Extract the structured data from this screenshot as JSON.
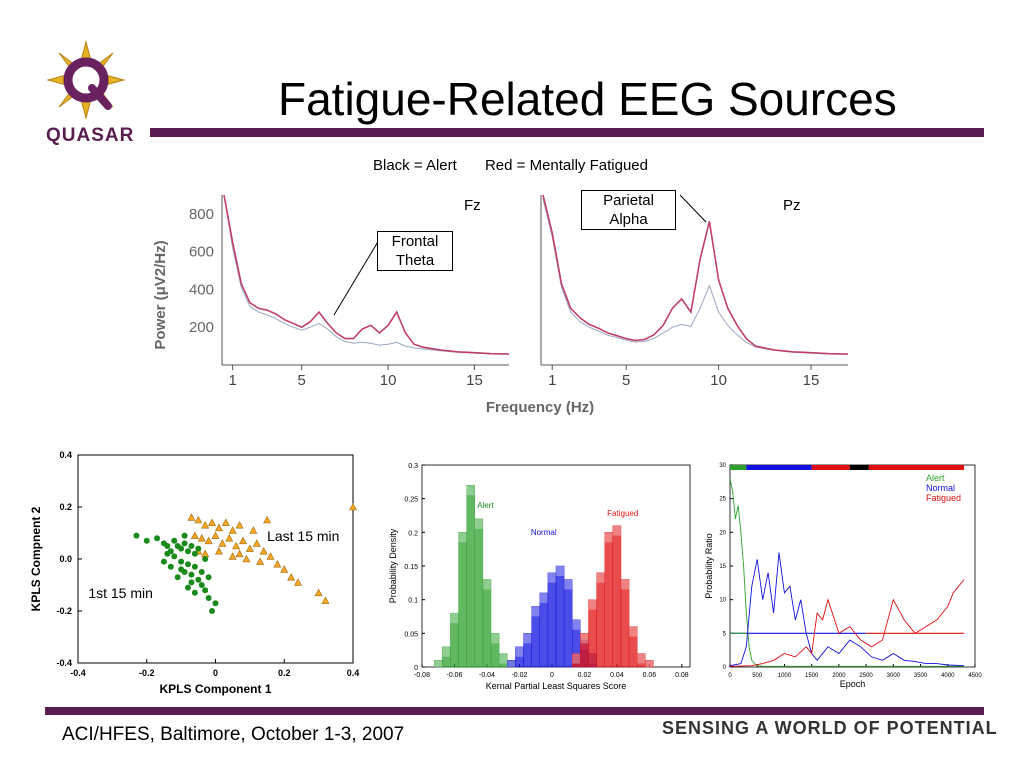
{
  "title": "Fatigue-Related EEG Sources",
  "logo": {
    "text": "QUASAR"
  },
  "legend_text": {
    "alert": "Black = Alert",
    "fatigued": "Red = Mentally Fatigued"
  },
  "callouts": {
    "frontal": [
      "Frontal",
      "Theta"
    ],
    "parietal": [
      "Parietal",
      "Alpha"
    ]
  },
  "footer": {
    "left": "ACI/HFES, Baltimore, October 1-3, 2007",
    "right": "SENSING A WORLD OF POTENTIAL"
  },
  "colors": {
    "accent": "#5a1d50",
    "alert": "#333333",
    "fatigued": "#c0406a",
    "green": "#2ca02c",
    "blue": "#1010e0",
    "red": "#e01010",
    "orange": "#f5a623"
  },
  "chart_data": [
    {
      "type": "line",
      "panel_label": "Fz",
      "xlabel": "Frequency (Hz)",
      "ylabel": "Power (μV2/Hz)",
      "xticks": [
        1,
        5,
        10,
        15
      ],
      "yticks": [
        200,
        400,
        600,
        800
      ],
      "xlim": [
        0.5,
        17
      ],
      "ylim": [
        0,
        900
      ],
      "series": [
        {
          "color": "#c0406a",
          "x": [
            0.5,
            1,
            1.5,
            2,
            2.5,
            3,
            3.5,
            4,
            4.5,
            5,
            5.5,
            6,
            6.5,
            7,
            7.5,
            8,
            8.5,
            9,
            9.5,
            10,
            10.5,
            11,
            11.5,
            12,
            13,
            14,
            15,
            16,
            17
          ],
          "y": [
            920,
            650,
            430,
            330,
            300,
            290,
            270,
            240,
            220,
            200,
            230,
            280,
            220,
            170,
            140,
            140,
            190,
            210,
            170,
            210,
            280,
            170,
            110,
            95,
            80,
            70,
            65,
            60,
            58
          ]
        },
        {
          "color": "#9aa6c8",
          "x": [
            0.5,
            1,
            1.5,
            2,
            2.5,
            3,
            3.5,
            4,
            4.5,
            5,
            5.5,
            6,
            6.5,
            7,
            7.5,
            8,
            8.5,
            9,
            9.5,
            10,
            10.5,
            11,
            11.5,
            12,
            13,
            14,
            15,
            16,
            17
          ],
          "y": [
            900,
            620,
            410,
            310,
            280,
            265,
            245,
            220,
            200,
            185,
            200,
            220,
            190,
            150,
            125,
            115,
            120,
            115,
            105,
            110,
            120,
            100,
            90,
            85,
            75,
            68,
            63,
            58,
            56
          ]
        }
      ]
    },
    {
      "type": "line",
      "panel_label": "Pz",
      "xlabel": "Frequency (Hz)",
      "xticks": [
        1,
        5,
        10,
        15
      ],
      "yticks": [
        200,
        400,
        600,
        800
      ],
      "xlim": [
        0.5,
        17
      ],
      "ylim": [
        0,
        900
      ],
      "series": [
        {
          "color": "#c0406a",
          "x": [
            0.5,
            1,
            1.5,
            2,
            2.5,
            3,
            3.5,
            4,
            4.5,
            5,
            5.5,
            6,
            6.5,
            7,
            7.5,
            8,
            8.5,
            9,
            9.5,
            10,
            10.5,
            11,
            11.5,
            12,
            13,
            14,
            15,
            16,
            17
          ],
          "y": [
            900,
            700,
            430,
            300,
            250,
            215,
            195,
            170,
            155,
            140,
            130,
            135,
            160,
            210,
            300,
            350,
            280,
            560,
            760,
            450,
            300,
            210,
            140,
            100,
            80,
            70,
            65,
            60,
            58
          ]
        },
        {
          "color": "#9aa6c8",
          "x": [
            0.5,
            1,
            1.5,
            2,
            2.5,
            3,
            3.5,
            4,
            4.5,
            5,
            5.5,
            6,
            6.5,
            7,
            7.5,
            8,
            8.5,
            9,
            9.5,
            10,
            10.5,
            11,
            11.5,
            12,
            13,
            14,
            15,
            16,
            17
          ],
          "y": [
            880,
            680,
            410,
            280,
            230,
            200,
            180,
            158,
            145,
            132,
            122,
            125,
            140,
            170,
            200,
            215,
            205,
            300,
            420,
            280,
            210,
            160,
            120,
            95,
            78,
            68,
            63,
            58,
            56
          ]
        }
      ]
    },
    {
      "type": "scatter",
      "xlabel": "KPLS Component 1",
      "ylabel": "KPLS Compnent 2",
      "xlim": [
        -0.4,
        0.4
      ],
      "ylim": [
        -0.4,
        0.4
      ],
      "xticks": [
        "-0.4",
        "-0.2",
        "0",
        "0.2",
        "0.4"
      ],
      "yticks": [
        "-0.4",
        "-0.2",
        "0.0",
        "0.2",
        "0.4"
      ],
      "annotations": [
        {
          "text": "Last 15 min"
        },
        {
          "text": "1st 15 min"
        }
      ],
      "series": [
        {
          "marker": "circle",
          "color": "#1a8a1a",
          "points": [
            [
              -0.23,
              0.09
            ],
            [
              -0.2,
              0.07
            ],
            [
              -0.17,
              0.08
            ],
            [
              -0.15,
              0.06
            ],
            [
              -0.14,
              0.05
            ],
            [
              -0.13,
              0.03
            ],
            [
              -0.12,
              0.07
            ],
            [
              -0.11,
              0.05
            ],
            [
              -0.1,
              0.04
            ],
            [
              -0.09,
              0.06
            ],
            [
              -0.08,
              0.03
            ],
            [
              -0.07,
              0.05
            ],
            [
              -0.06,
              0.02
            ],
            [
              -0.05,
              0.04
            ],
            [
              -0.12,
              0.01
            ],
            [
              -0.1,
              -0.01
            ],
            [
              -0.08,
              -0.02
            ],
            [
              -0.06,
              -0.03
            ],
            [
              -0.09,
              -0.05
            ],
            [
              -0.07,
              -0.06
            ],
            [
              -0.05,
              -0.08
            ],
            [
              -0.04,
              -0.1
            ],
            [
              -0.03,
              -0.12
            ],
            [
              -0.02,
              -0.15
            ],
            [
              -0.01,
              -0.2
            ],
            [
              -0.13,
              -0.03
            ],
            [
              -0.15,
              -0.01
            ],
            [
              -0.11,
              -0.07
            ],
            [
              -0.08,
              -0.11
            ],
            [
              -0.06,
              -0.13
            ],
            [
              -0.04,
              -0.05
            ],
            [
              -0.02,
              -0.07
            ],
            [
              0.0,
              -0.17
            ],
            [
              -0.14,
              0.02
            ],
            [
              -0.09,
              0.09
            ],
            [
              -0.07,
              -0.09
            ],
            [
              -0.03,
              0.0
            ],
            [
              -0.1,
              -0.04
            ]
          ]
        },
        {
          "marker": "triangle",
          "color": "#f5a623",
          "points": [
            [
              -0.07,
              0.16
            ],
            [
              -0.05,
              0.15
            ],
            [
              -0.03,
              0.13
            ],
            [
              -0.01,
              0.14
            ],
            [
              0.01,
              0.12
            ],
            [
              0.03,
              0.14
            ],
            [
              0.05,
              0.11
            ],
            [
              0.07,
              0.13
            ],
            [
              -0.06,
              0.09
            ],
            [
              -0.04,
              0.08
            ],
            [
              -0.02,
              0.07
            ],
            [
              0.0,
              0.09
            ],
            [
              0.02,
              0.06
            ],
            [
              0.04,
              0.08
            ],
            [
              0.06,
              0.05
            ],
            [
              0.08,
              0.07
            ],
            [
              0.1,
              0.04
            ],
            [
              0.12,
              0.06
            ],
            [
              0.14,
              0.03
            ],
            [
              0.16,
              0.01
            ],
            [
              0.18,
              -0.02
            ],
            [
              0.2,
              -0.04
            ],
            [
              0.22,
              -0.07
            ],
            [
              0.24,
              -0.09
            ],
            [
              -0.05,
              0.03
            ],
            [
              -0.03,
              0.02
            ],
            [
              0.01,
              0.03
            ],
            [
              0.05,
              0.01
            ],
            [
              0.09,
              0.0
            ],
            [
              0.13,
              -0.01
            ],
            [
              0.15,
              0.15
            ],
            [
              0.3,
              -0.13
            ],
            [
              0.32,
              -0.16
            ],
            [
              0.4,
              0.2
            ],
            [
              0.11,
              0.11
            ],
            [
              0.07,
              0.02
            ]
          ]
        }
      ]
    },
    {
      "type": "bar",
      "xlabel": "Kernal Partial Least Squares Score",
      "ylabel": "Probability Density",
      "xlim": [
        -0.08,
        0.085
      ],
      "ylim": [
        0,
        0.3
      ],
      "xticks": [
        "-0.08",
        "-0.06",
        "-0.04",
        "-0.02",
        "0",
        "0.02",
        "0.04",
        "0.06",
        "0.08"
      ],
      "yticks": [
        "0",
        "0.05",
        "0.1",
        "0.15",
        "0.2",
        "0.25",
        "0.3"
      ],
      "bin_width": 0.005,
      "series": [
        {
          "name": "Alert",
          "color": "#2ca02c",
          "x": [
            -0.07,
            -0.065,
            -0.06,
            -0.055,
            -0.05,
            -0.045,
            -0.04,
            -0.035,
            -0.03,
            -0.025
          ],
          "values": [
            0.01,
            0.03,
            0.08,
            0.2,
            0.27,
            0.22,
            0.13,
            0.05,
            0.02,
            0.01
          ]
        },
        {
          "name": "Normal",
          "color": "#1010e0",
          "x": [
            -0.025,
            -0.02,
            -0.015,
            -0.01,
            -0.005,
            0.0,
            0.005,
            0.01,
            0.015,
            0.02,
            0.025
          ],
          "values": [
            0.01,
            0.03,
            0.05,
            0.09,
            0.11,
            0.14,
            0.15,
            0.13,
            0.07,
            0.04,
            0.02
          ]
        },
        {
          "name": "Fatigued",
          "color": "#e01010",
          "x": [
            0.015,
            0.02,
            0.025,
            0.03,
            0.035,
            0.04,
            0.045,
            0.05,
            0.055,
            0.06
          ],
          "values": [
            0.02,
            0.05,
            0.1,
            0.14,
            0.2,
            0.21,
            0.13,
            0.06,
            0.02,
            0.01
          ]
        }
      ]
    },
    {
      "type": "line",
      "xlabel": "Epoch",
      "ylabel": "Probability Ratio",
      "xlim": [
        0,
        4500
      ],
      "ylim": [
        0,
        30
      ],
      "xticks": [
        "0",
        "500",
        "1000",
        "1500",
        "2000",
        "2500",
        "3000",
        "3500",
        "4000",
        "4500"
      ],
      "yticks": [
        "0",
        "5",
        "10",
        "15",
        "20",
        "25",
        "30"
      ],
      "legend": [
        "Alert",
        "Normal",
        "Fatigued"
      ],
      "threshold": 5,
      "series": [
        {
          "name": "Alert",
          "color": "#2ca02c",
          "x": [
            0,
            50,
            100,
            150,
            200,
            250,
            300,
            350,
            400,
            450,
            500,
            600,
            800,
            1200,
            1600,
            2000,
            2400,
            2800,
            3200,
            3600,
            4000,
            4300
          ],
          "y": [
            28,
            26,
            22,
            24,
            20,
            15,
            8,
            3,
            1,
            0.5,
            0.2,
            0.1,
            0.1,
            0.1,
            0.1,
            0.1,
            0.1,
            0.1,
            0.1,
            0.1,
            0.1,
            0.1
          ]
        },
        {
          "name": "Normal",
          "color": "#1010e0",
          "x": [
            0,
            200,
            300,
            400,
            500,
            600,
            700,
            800,
            900,
            1000,
            1100,
            1200,
            1300,
            1400,
            1500,
            1600,
            1800,
            2000,
            2200,
            2400,
            2600,
            2800,
            3000,
            3200,
            3400,
            3600,
            3800,
            4000,
            4300
          ],
          "y": [
            0.2,
            0.5,
            3,
            12,
            16,
            10,
            14,
            8,
            17,
            11,
            12,
            7,
            10,
            5,
            2,
            1,
            3,
            2,
            4,
            3,
            1.5,
            1,
            2,
            1,
            0.8,
            0.5,
            0.5,
            0.3,
            0.2
          ]
        },
        {
          "name": "Fatigued",
          "color": "#e01010",
          "x": [
            0,
            400,
            600,
            800,
            1000,
            1200,
            1400,
            1500,
            1600,
            1700,
            1800,
            2000,
            2200,
            2400,
            2600,
            2800,
            3000,
            3200,
            3400,
            3600,
            3800,
            4000,
            4100,
            4200,
            4300
          ],
          "y": [
            0.1,
            0.2,
            0.5,
            1,
            2,
            1.5,
            3,
            2,
            8,
            7,
            10,
            5,
            6,
            4,
            3,
            4,
            10,
            7,
            5,
            6,
            7,
            9,
            11,
            12,
            13
          ]
        }
      ],
      "color_bar": [
        "green",
        "blue",
        "red",
        "black",
        "red"
      ]
    }
  ]
}
